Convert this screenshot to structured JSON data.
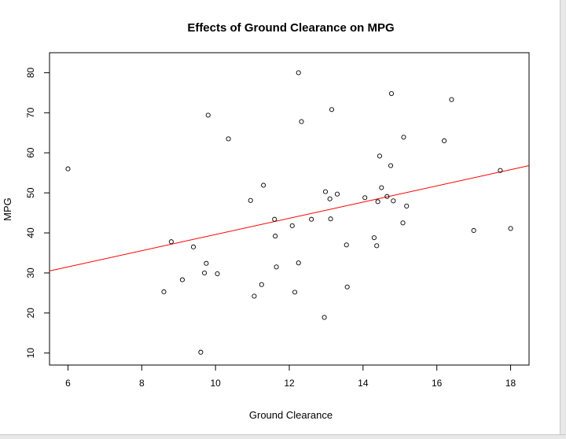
{
  "chart_data": {
    "type": "scatter",
    "title": "Effects of Ground Clearance on MPG",
    "xlabel": "Ground Clearance",
    "ylabel": "MPG",
    "xlim": [
      5.5,
      18.5
    ],
    "ylim": [
      7,
      85
    ],
    "xticks": [
      6,
      8,
      10,
      12,
      14,
      16,
      18
    ],
    "yticks": [
      10,
      20,
      30,
      40,
      50,
      60,
      70,
      80
    ],
    "grid": false,
    "point_color": "#000000",
    "trend_color": "#ff0000",
    "points": [
      [
        6.0,
        56.0
      ],
      [
        8.6,
        25.3
      ],
      [
        8.8,
        37.8
      ],
      [
        9.1,
        28.3
      ],
      [
        9.4,
        36.5
      ],
      [
        9.6,
        10.2
      ],
      [
        9.7,
        30.0
      ],
      [
        9.75,
        32.4
      ],
      [
        9.8,
        69.4
      ],
      [
        10.05,
        29.8
      ],
      [
        10.35,
        63.5
      ],
      [
        10.95,
        48.1
      ],
      [
        11.05,
        24.2
      ],
      [
        11.25,
        27.1
      ],
      [
        11.3,
        51.9
      ],
      [
        11.6,
        43.4
      ],
      [
        11.62,
        39.2
      ],
      [
        11.65,
        31.5
      ],
      [
        12.08,
        41.8
      ],
      [
        12.15,
        25.2
      ],
      [
        12.25,
        32.5
      ],
      [
        12.25,
        80.0
      ],
      [
        12.33,
        67.8
      ],
      [
        12.6,
        43.4
      ],
      [
        12.95,
        18.9
      ],
      [
        12.98,
        50.3
      ],
      [
        13.1,
        48.5
      ],
      [
        13.12,
        43.5
      ],
      [
        13.15,
        70.8
      ],
      [
        13.3,
        49.7
      ],
      [
        13.55,
        37.0
      ],
      [
        13.57,
        26.5
      ],
      [
        14.05,
        48.8
      ],
      [
        14.3,
        38.8
      ],
      [
        14.37,
        36.8
      ],
      [
        14.4,
        47.8
      ],
      [
        14.45,
        59.2
      ],
      [
        14.5,
        51.3
      ],
      [
        14.65,
        49.1
      ],
      [
        14.75,
        56.8
      ],
      [
        14.77,
        74.8
      ],
      [
        14.82,
        48.0
      ],
      [
        15.08,
        42.5
      ],
      [
        15.1,
        63.9
      ],
      [
        15.18,
        46.7
      ],
      [
        16.2,
        63.0
      ],
      [
        16.4,
        73.3
      ],
      [
        17.0,
        40.6
      ],
      [
        17.72,
        55.6
      ],
      [
        18.0,
        41.1
      ]
    ],
    "trend_line": {
      "x": [
        5.5,
        18.5
      ],
      "y": [
        30.5,
        56.8
      ]
    }
  }
}
